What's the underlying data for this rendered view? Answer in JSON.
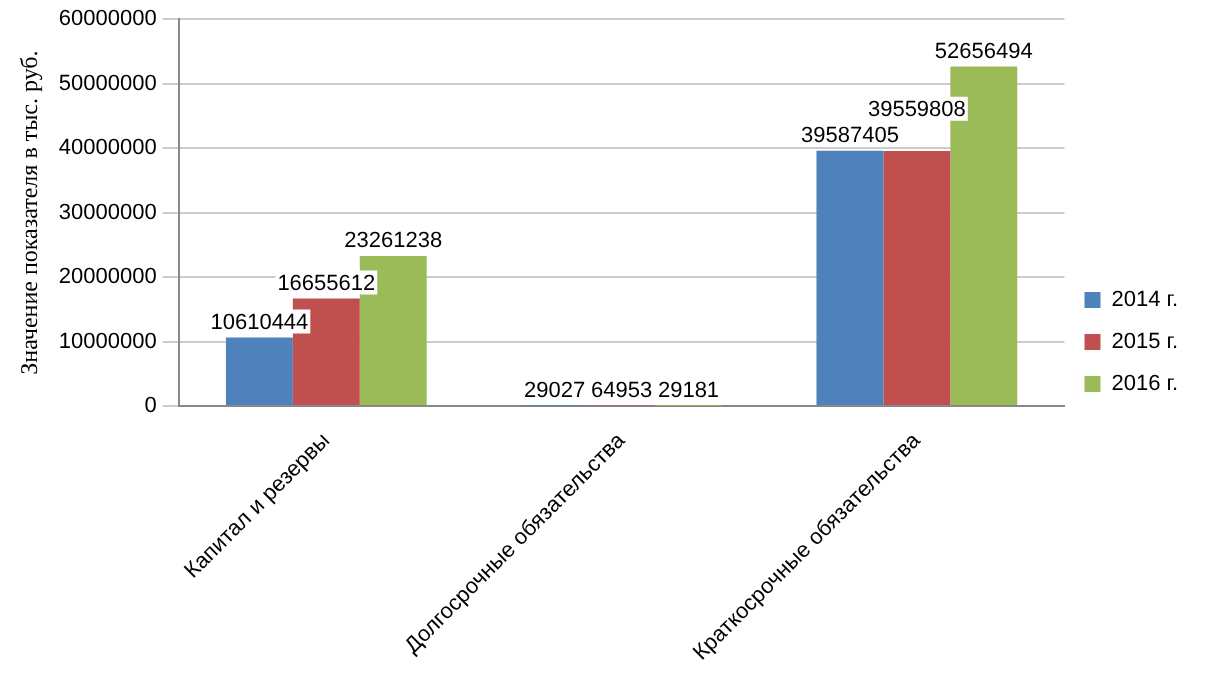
{
  "chart_data": {
    "type": "bar",
    "ylabel": "Значение показателя в тыс. руб.",
    "categories": [
      "Капитал и резервы",
      "Долгосрочные обязательства",
      "Краткосрочные обязательства"
    ],
    "series": [
      {
        "name": "2014 г.",
        "color": "#4f81bd",
        "values": [
          10610444,
          29027,
          39587405
        ]
      },
      {
        "name": "2015 г.",
        "color": "#c0504d",
        "values": [
          16655612,
          64953,
          39559808
        ]
      },
      {
        "name": "2016 г.",
        "color": "#9bbb59",
        "values": [
          23261238,
          29181,
          52656494
        ]
      }
    ],
    "ylim": [
      0,
      60000000
    ],
    "yticks": [
      0,
      10000000,
      20000000,
      30000000,
      40000000,
      50000000,
      60000000
    ],
    "grid": "y",
    "legend": "right",
    "data_labels": true
  }
}
